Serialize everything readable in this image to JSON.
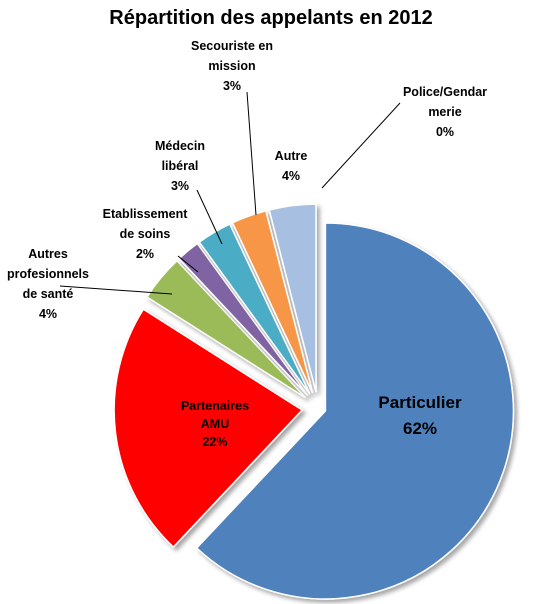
{
  "chart_data": {
    "type": "pie",
    "title": "Répartition des appelants en 2012",
    "categories": [
      "Particulier",
      "Partenaires\nAMU",
      "Autres\nprofesionnels\nde santé",
      "Etablissement\nde soins",
      "Médecin\nlibéral",
      "Secouriste en\nmission",
      "Autre",
      "Police/Gendar\nmerie"
    ],
    "values": [
      62,
      22,
      4,
      2,
      3,
      3,
      4,
      0
    ],
    "value_labels": [
      "62%",
      "22%",
      "4%",
      "2%",
      "3%",
      "3%",
      "4%",
      "0%"
    ],
    "colors": [
      "#4f81bd",
      "#ff0000",
      "#9bbb59",
      "#8064a2",
      "#4bacc6",
      "#f79646",
      "#a7bfe0",
      "#c0504d"
    ]
  }
}
